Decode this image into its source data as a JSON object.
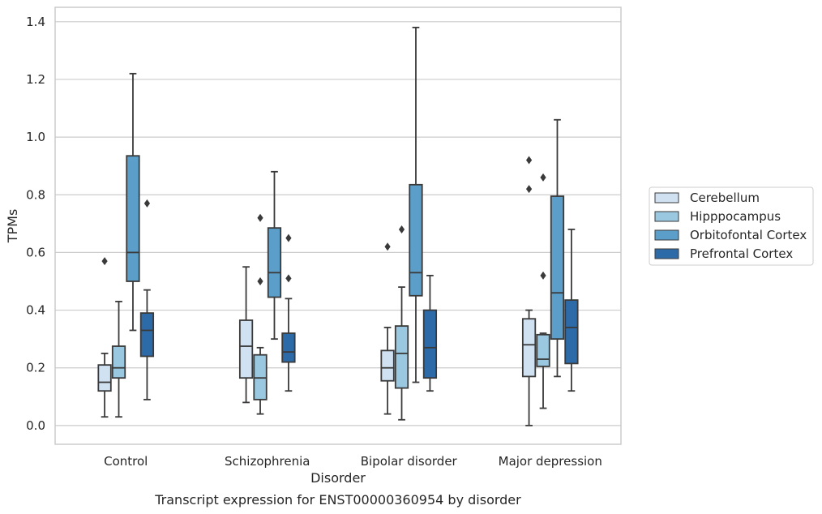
{
  "chart_data": {
    "type": "boxplot",
    "caption": "Transcript expression for ENST00000360954 by disorder",
    "xlabel": "Disorder",
    "ylabel": "TPMs",
    "ylim": [
      -0.065,
      1.45
    ],
    "yticks": [
      0.0,
      0.2,
      0.4,
      0.6,
      0.8,
      1.0,
      1.2,
      1.4
    ],
    "ytick_labels": [
      "0.0",
      "0.2",
      "0.4",
      "0.6",
      "0.8",
      "1.0",
      "1.2",
      "1.4"
    ],
    "grid": "horizontal",
    "legend_position": "right-outside",
    "categories": [
      "Control",
      "Schizophrenia",
      "Bipolar disorder",
      "Major depression"
    ],
    "series": [
      {
        "name": "Cerebellum",
        "color": "#d0e1f2",
        "boxes": [
          {
            "whislo": 0.03,
            "q1": 0.12,
            "med": 0.15,
            "q3": 0.21,
            "whishi": 0.25,
            "fliers": [
              0.57
            ]
          },
          {
            "whislo": 0.08,
            "q1": 0.165,
            "med": 0.275,
            "q3": 0.365,
            "whishi": 0.55,
            "fliers": []
          },
          {
            "whislo": 0.04,
            "q1": 0.155,
            "med": 0.2,
            "q3": 0.26,
            "whishi": 0.34,
            "fliers": [
              0.62
            ]
          },
          {
            "whislo": 0.0,
            "q1": 0.17,
            "med": 0.28,
            "q3": 0.37,
            "whishi": 0.4,
            "fliers": [
              0.82,
              0.92
            ]
          }
        ]
      },
      {
        "name": "Hipppocampus",
        "color": "#9ac8e0",
        "boxes": [
          {
            "whislo": 0.03,
            "q1": 0.165,
            "med": 0.2,
            "q3": 0.275,
            "whishi": 0.43,
            "fliers": []
          },
          {
            "whislo": 0.04,
            "q1": 0.09,
            "med": 0.165,
            "q3": 0.245,
            "whishi": 0.27,
            "fliers": [
              0.5,
              0.72
            ]
          },
          {
            "whislo": 0.02,
            "q1": 0.13,
            "med": 0.25,
            "q3": 0.345,
            "whishi": 0.48,
            "fliers": [
              0.68
            ]
          },
          {
            "whislo": 0.06,
            "q1": 0.205,
            "med": 0.23,
            "q3": 0.315,
            "whishi": 0.32,
            "fliers": [
              0.52,
              0.86
            ]
          }
        ]
      },
      {
        "name": "Orbitofontal Cortex",
        "color": "#5a9ec9",
        "boxes": [
          {
            "whislo": 0.33,
            "q1": 0.5,
            "med": 0.6,
            "q3": 0.935,
            "whishi": 1.22,
            "fliers": []
          },
          {
            "whislo": 0.3,
            "q1": 0.445,
            "med": 0.53,
            "q3": 0.685,
            "whishi": 0.88,
            "fliers": []
          },
          {
            "whislo": 0.15,
            "q1": 0.45,
            "med": 0.53,
            "q3": 0.835,
            "whishi": 1.38,
            "fliers": []
          },
          {
            "whislo": 0.17,
            "q1": 0.3,
            "med": 0.46,
            "q3": 0.795,
            "whishi": 1.06,
            "fliers": []
          }
        ]
      },
      {
        "name": "Prefrontal Cortex",
        "color": "#2d6aa8",
        "boxes": [
          {
            "whislo": 0.09,
            "q1": 0.24,
            "med": 0.33,
            "q3": 0.39,
            "whishi": 0.47,
            "fliers": [
              0.77
            ]
          },
          {
            "whislo": 0.12,
            "q1": 0.22,
            "med": 0.255,
            "q3": 0.32,
            "whishi": 0.44,
            "fliers": [
              0.51,
              0.65
            ]
          },
          {
            "whislo": 0.12,
            "q1": 0.165,
            "med": 0.27,
            "q3": 0.4,
            "whishi": 0.52,
            "fliers": []
          },
          {
            "whislo": 0.12,
            "q1": 0.215,
            "med": 0.34,
            "q3": 0.435,
            "whishi": 0.68,
            "fliers": []
          }
        ]
      }
    ]
  }
}
